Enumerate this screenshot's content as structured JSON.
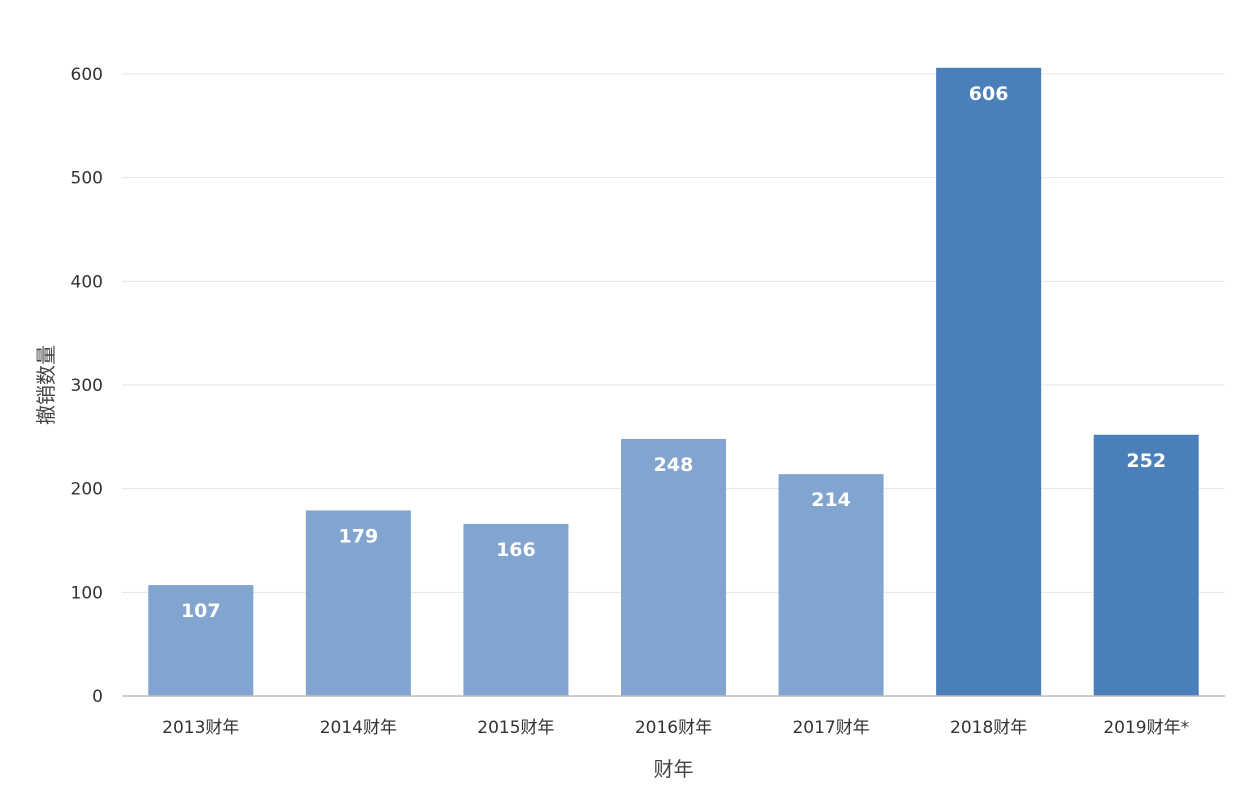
{
  "chart_data": {
    "type": "bar",
    "categories": [
      "2013财年",
      "2014财年",
      "2015财年",
      "2016财年",
      "2017财年",
      "2018财年",
      "2019财年*"
    ],
    "values": [
      107,
      179,
      166,
      248,
      214,
      606,
      252
    ],
    "data_labels": [
      "107",
      "179",
      "166",
      "248",
      "214",
      "606",
      "252"
    ],
    "bar_colors": [
      "#82a5d0",
      "#82a5d0",
      "#82a5d0",
      "#82a5d0",
      "#82a5d0",
      "#4a7fba",
      "#4a7fba"
    ],
    "xlabel": "财年",
    "ylabel": "撤销数量",
    "ylim": [
      0,
      600
    ],
    "yticks": [
      0,
      100,
      200,
      300,
      400,
      500,
      600
    ],
    "ytick_labels": [
      "0",
      "100",
      "200",
      "300",
      "400",
      "500",
      "600"
    ],
    "grid": true,
    "legend": "none"
  }
}
